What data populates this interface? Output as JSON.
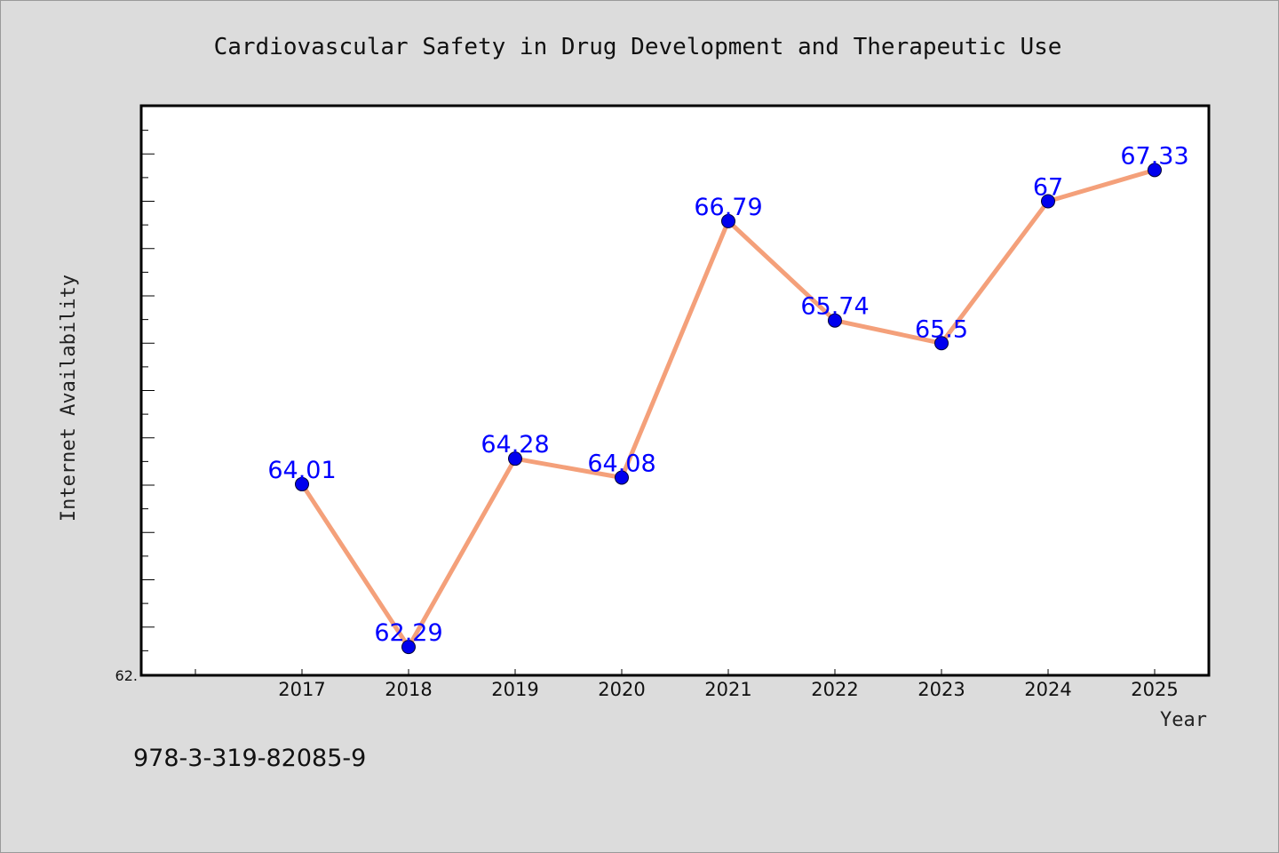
{
  "chart_data": {
    "type": "line",
    "title": "Cardiovascular Safety in Drug Development and Therapeutic Use",
    "xlabel": "Year",
    "ylabel": "Internet Availability",
    "categories": [
      "2017",
      "2018",
      "2019",
      "2020",
      "2021",
      "2022",
      "2023",
      "2024",
      "2025"
    ],
    "series": [
      {
        "values": [
          64.01,
          62.29,
          64.28,
          64.08,
          66.79,
          65.74,
          65.5,
          67.0,
          67.33
        ],
        "labels": [
          "64.01",
          "62.29",
          "64.28",
          "64.08",
          "66.79",
          "65.74",
          "65.5",
          "67",
          "67.33"
        ]
      }
    ],
    "y_tick_label": "62.",
    "ylim": [
      62.0,
      68.0
    ],
    "grid": false,
    "legend": "none",
    "colors": {
      "line": "#f4a07a",
      "marker": "#0000ee",
      "data_label": "#0000ff",
      "plot_background": "#ffffff",
      "figure_background": "#dcdcdc"
    }
  },
  "footer_text": "978-3-319-82085-9"
}
